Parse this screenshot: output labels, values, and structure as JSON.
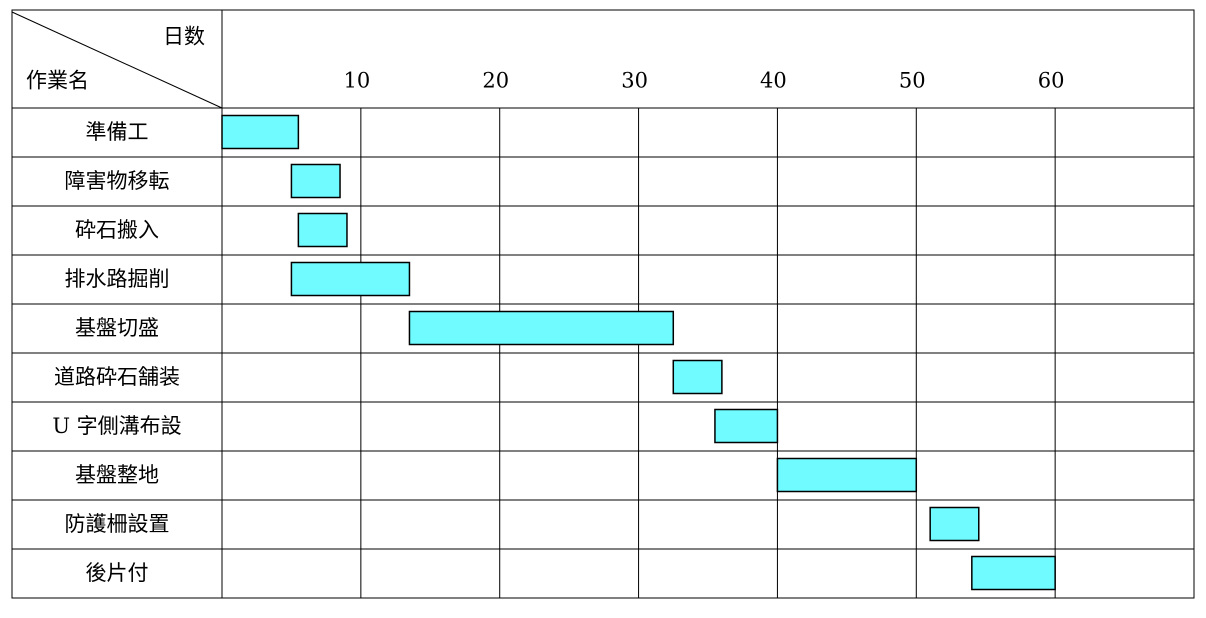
{
  "chart_data": {
    "type": "gantt",
    "x_label": "日数",
    "y_label": "作業名",
    "categories": [
      "準備工",
      "障害物移転",
      "砕石搬入",
      "排水路掘削",
      "基盤切盛",
      "道路砕石舗装",
      "U 字側溝布設",
      "基盤整地",
      "防護柵設置",
      "後片付"
    ],
    "start": [
      0,
      5,
      5.5,
      5,
      13.5,
      32.5,
      35.5,
      40,
      51,
      54
    ],
    "end": [
      5.5,
      8.5,
      9,
      13.5,
      32.5,
      36,
      40,
      50,
      54.5,
      60
    ],
    "color": "#6ffbff",
    "xlim": [
      0,
      70
    ],
    "xticks": [
      10,
      20,
      30,
      40,
      50,
      60
    ],
    "grid": true
  }
}
